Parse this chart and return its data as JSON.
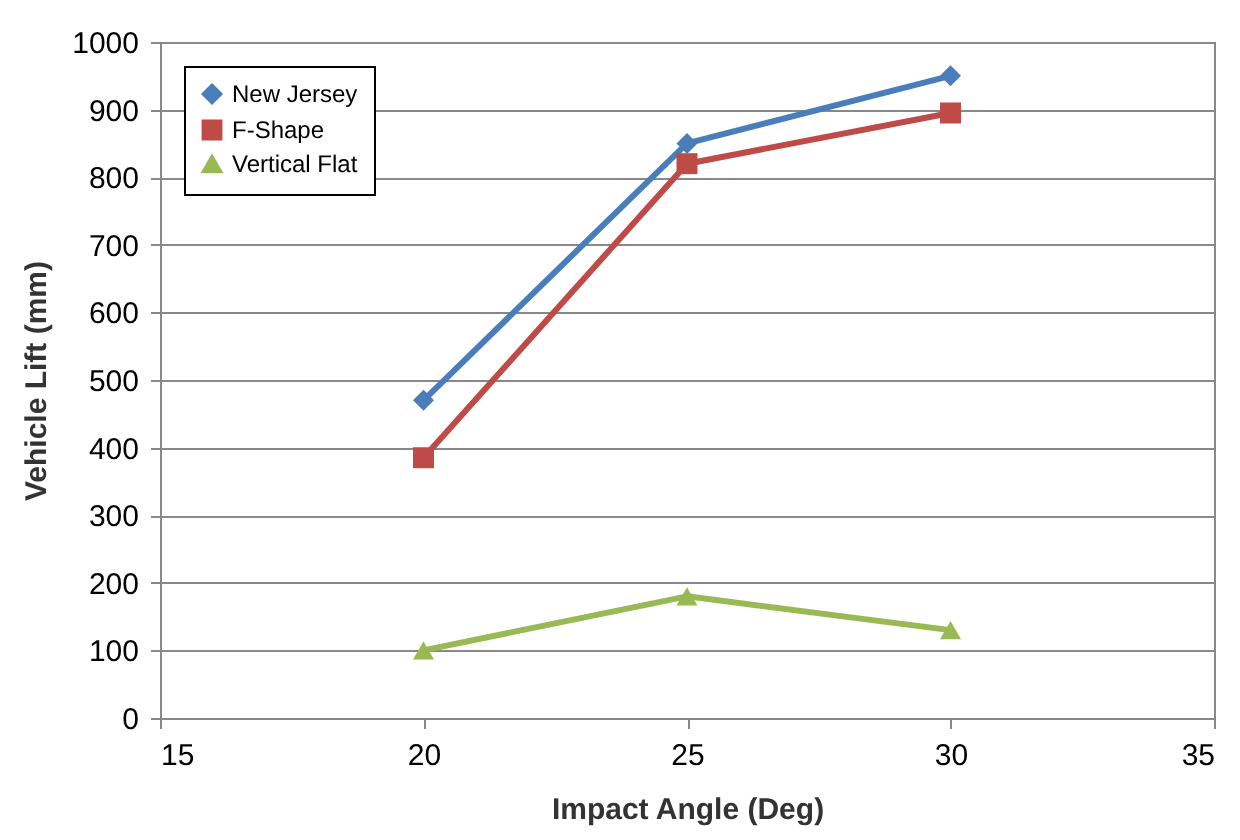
{
  "chart_data": {
    "type": "line",
    "xlabel": "Impact Angle (Deg)",
    "ylabel": "Vehicle Lift (mm)",
    "x": [
      20,
      25,
      30
    ],
    "series": [
      {
        "name": "New Jersey",
        "color": "#4a7ebb",
        "marker": "diamond",
        "values": [
          470,
          850,
          950
        ]
      },
      {
        "name": "F-Shape",
        "color": "#be4b48",
        "marker": "square",
        "values": [
          385,
          820,
          895
        ]
      },
      {
        "name": "Vertical Flat",
        "color": "#98b954",
        "marker": "triangle",
        "values": [
          100,
          180,
          130
        ]
      }
    ],
    "xlim": [
      15,
      35
    ],
    "xticks": [
      15,
      20,
      25,
      30,
      35
    ],
    "ylim": [
      0,
      1000
    ],
    "yticks": [
      0,
      100,
      200,
      300,
      400,
      500,
      600,
      700,
      800,
      900,
      1000
    ],
    "grid": "y",
    "legend": "top left"
  }
}
